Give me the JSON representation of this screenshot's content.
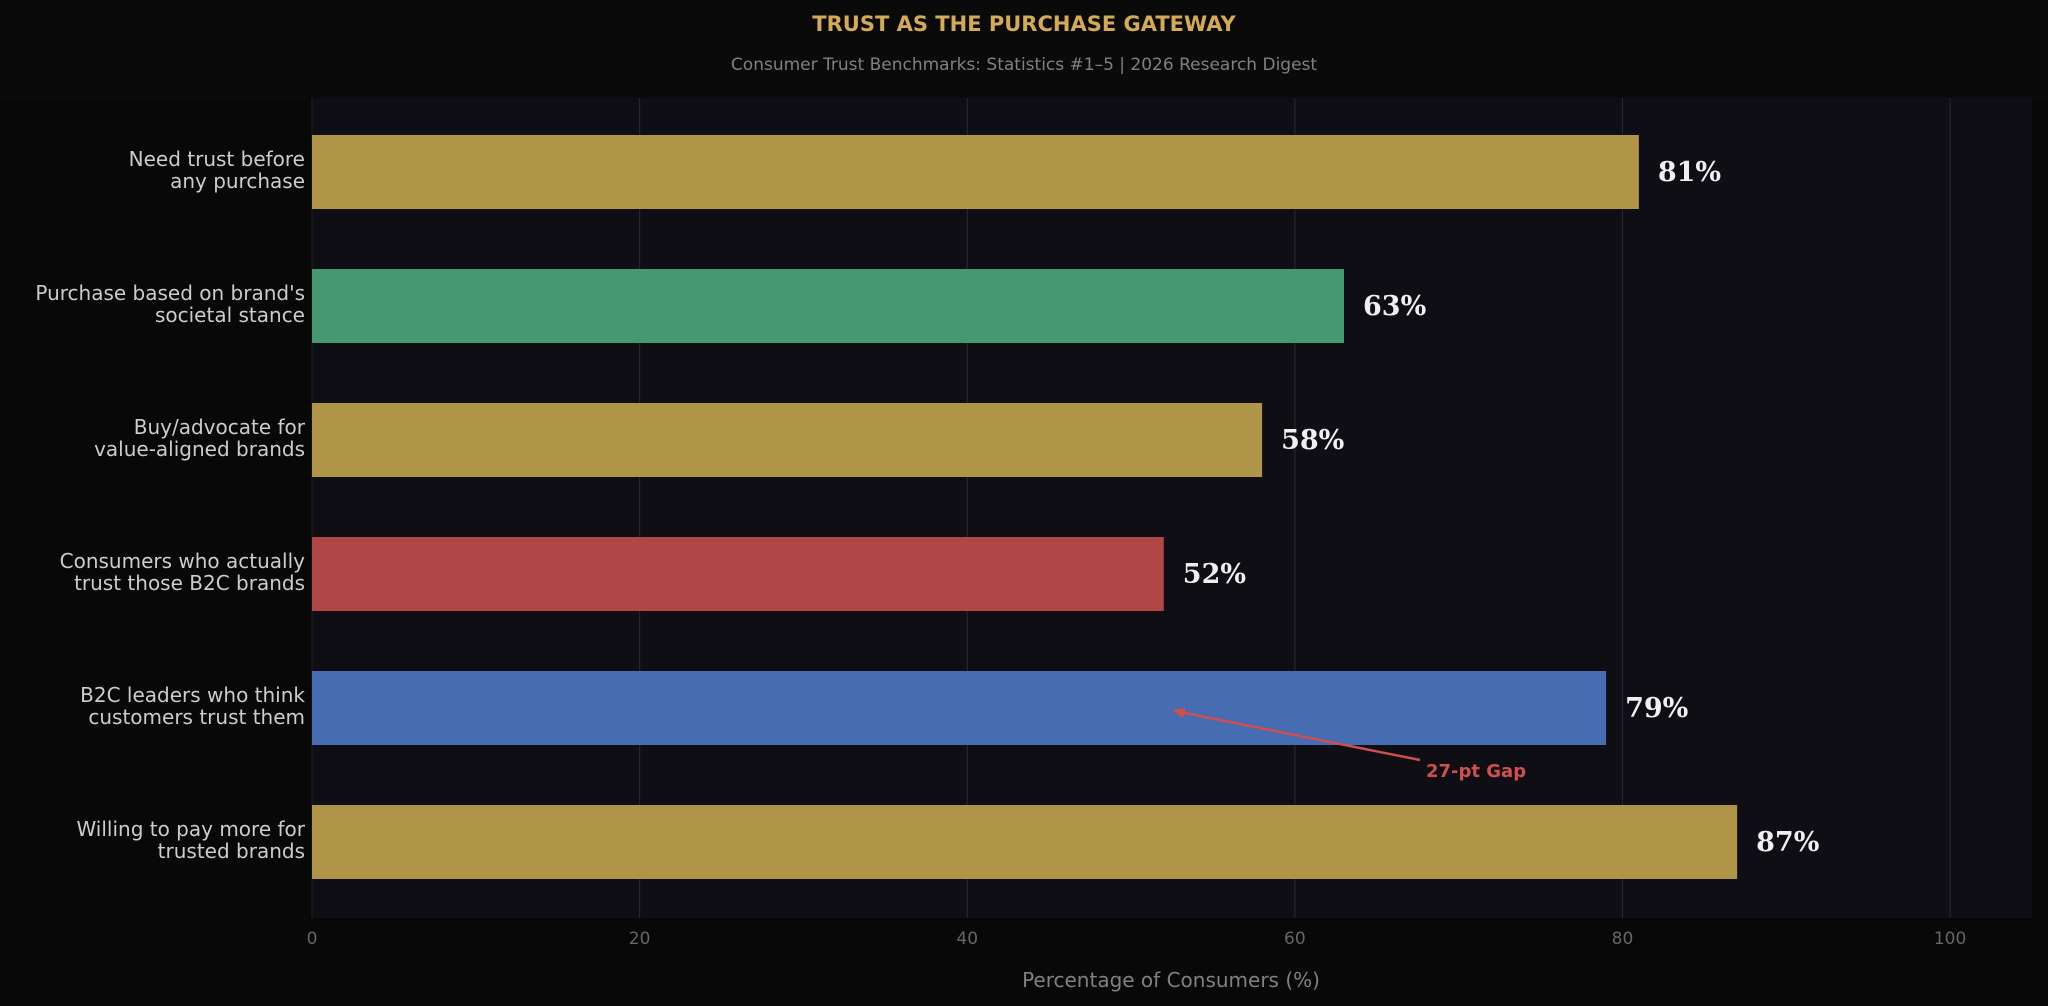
{
  "chart_data": {
    "type": "bar",
    "orientation": "horizontal",
    "title": "TRUST AS THE PURCHASE GATEWAY",
    "subtitle": "Consumer Trust Benchmarks: Statistics #1–5 | 2026 Research Digest",
    "xlabel": "Percentage of Consumers (%)",
    "ylabel": "",
    "xlim": [
      0,
      105
    ],
    "xticks": [
      "0",
      "20",
      "40",
      "60",
      "80",
      "100"
    ],
    "grid": true,
    "categories": [
      [
        "Need trust before",
        "any purchase"
      ],
      [
        "Purchase based on brand's",
        "societal stance"
      ],
      [
        "Buy/advocate for",
        "value-aligned brands"
      ],
      [
        "Consumers who actually",
        "trust those B2C brands"
      ],
      [
        "B2C leaders who think",
        "customers trust them"
      ],
      [
        "Willing to pay more for",
        "trusted brands"
      ]
    ],
    "values": [
      81,
      63,
      58,
      52,
      79,
      87
    ],
    "value_labels": [
      "81%",
      "63%",
      "58%",
      "52%",
      "79%",
      "87%"
    ],
    "colors": [
      "#B09448",
      "#449970",
      "#B09448",
      "#B04646",
      "#466CB2",
      "#B09448"
    ],
    "annotation": {
      "text": "27-pt Gap",
      "color": "#D05050",
      "points_to_value": 52.5,
      "category_index": 4
    }
  },
  "colors": {
    "background": "#080808",
    "plot_background": "#0E0E14",
    "title": "#D4AA55",
    "subtitle": "#808080",
    "label": "#CCCCCC",
    "tick": "#666666",
    "value_text": "#F0F0F0",
    "grid": "#26262C"
  }
}
